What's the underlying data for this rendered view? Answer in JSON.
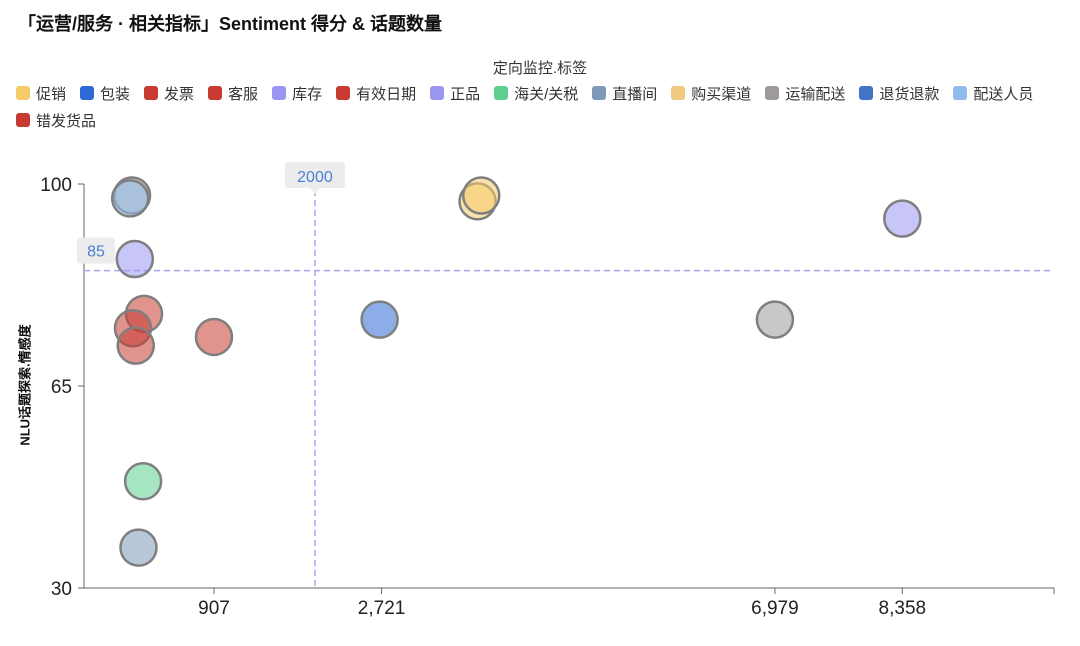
{
  "title": "「运营/服务 · 相关指标」Sentiment 得分 & 话题数量",
  "legend_title": "定向监控.标签",
  "colors": {
    "axis": "#666666",
    "ref_line": "#a9a6ee",
    "ref_label_bg": "#ececec",
    "ref_label_text": "#4a7fd6",
    "point_stroke": "#7f7f7f"
  },
  "chart_data": {
    "type": "scatter",
    "title": "「运营/服务 · 相关指标」Sentiment 得分 & 话题数量",
    "xlabel": "",
    "ylabel": "NLU话题探索.情感度",
    "xlim": [
      -500,
      10000
    ],
    "ylim": [
      30,
      100
    ],
    "x_ticks": [
      907,
      2721,
      6979,
      8358
    ],
    "x_tick_labels": [
      "907",
      "2,721",
      "6,979",
      "8,358"
    ],
    "y_ticks": [
      30,
      65,
      100
    ],
    "y_tick_labels": [
      "30",
      "65",
      "100"
    ],
    "ref_lines": [
      {
        "axis": "x",
        "value": 2000,
        "label": "2000"
      },
      {
        "axis": "y",
        "value": 85,
        "label": "85"
      }
    ],
    "grid": false,
    "legend_position": "top",
    "series": [
      {
        "name": "促销",
        "color": "#f5cb6a",
        "points": [
          {
            "x": 3760,
            "y": 97
          },
          {
            "x": 3800,
            "y": 98
          }
        ]
      },
      {
        "name": "包装",
        "color": "#2e6ad6",
        "points": [
          {
            "x": 2700,
            "y": 76.5
          }
        ]
      },
      {
        "name": "发票",
        "color": "#c83b32",
        "points": [
          {
            "x": 150,
            "y": 77.5
          },
          {
            "x": 30,
            "y": 75
          }
        ]
      },
      {
        "name": "客服",
        "color": "#c83b32",
        "points": [
          {
            "x": 907,
            "y": 73.5
          }
        ]
      },
      {
        "name": "库存",
        "color": "#9b95f2",
        "points": [
          {
            "x": 50,
            "y": 87
          }
        ]
      },
      {
        "name": "有效日期",
        "color": "#c83b32",
        "points": [
          {
            "x": 60,
            "y": 72
          }
        ]
      },
      {
        "name": "正品",
        "color": "#9b95f2",
        "points": [
          {
            "x": 8358,
            "y": 94
          }
        ]
      },
      {
        "name": "海关/关税",
        "color": "#5dcf8f",
        "points": [
          {
            "x": 140,
            "y": 48.5
          }
        ]
      },
      {
        "name": "直播间",
        "color": "#7f9ab8",
        "points": [
          {
            "x": 90,
            "y": 37
          }
        ]
      },
      {
        "name": "购买渠道",
        "color": "#f0c880",
        "points": []
      },
      {
        "name": "运输配送",
        "color": "#a09a9a",
        "points": [
          {
            "x": 6979,
            "y": 76.5
          },
          {
            "x": 20,
            "y": 98
          }
        ]
      },
      {
        "name": "退货退款",
        "color": "#4472c4",
        "points": []
      },
      {
        "name": "配送人员",
        "color": "#8fbcec",
        "points": [
          {
            "x": 0,
            "y": 97.5
          }
        ]
      },
      {
        "name": "错发货品",
        "color": "#c83b32",
        "points": []
      }
    ]
  }
}
